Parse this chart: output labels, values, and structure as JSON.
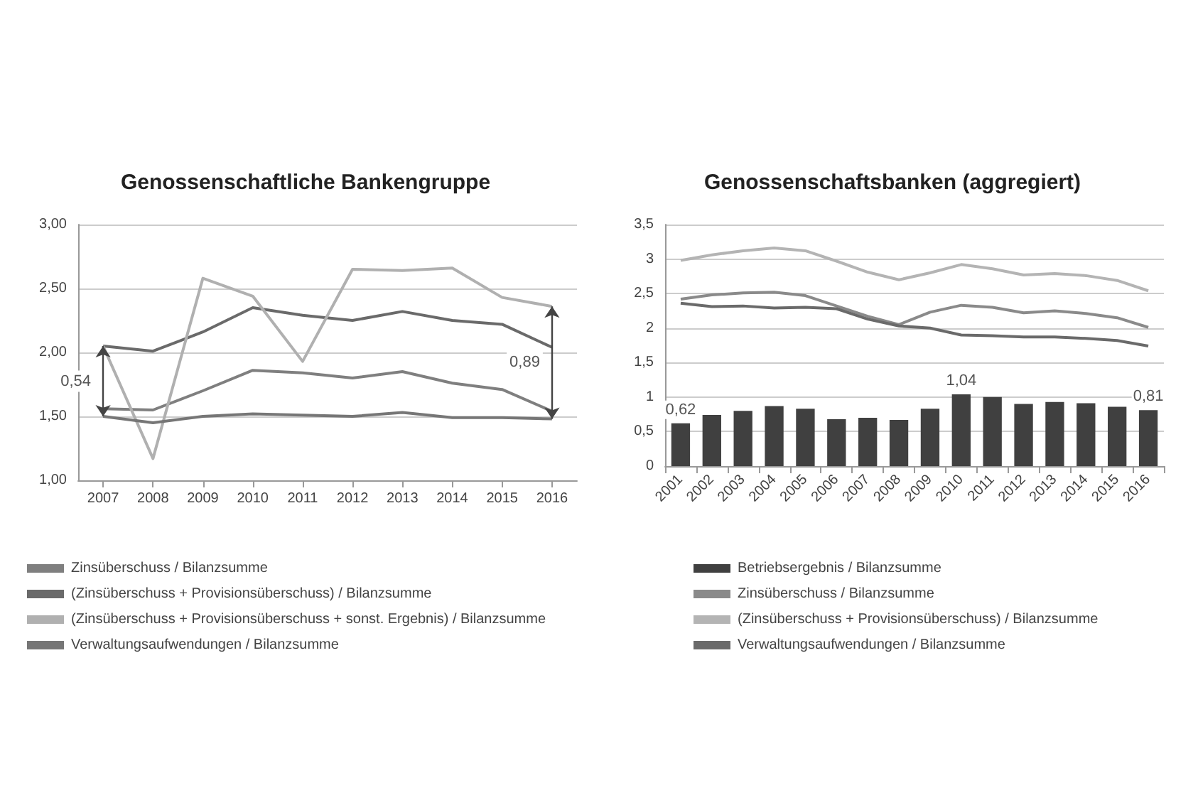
{
  "chart_data": [
    {
      "type": "line",
      "title": "Genossenschaftliche Bankengruppe",
      "categories": [
        "2007",
        "2008",
        "2009",
        "2010",
        "2011",
        "2012",
        "2013",
        "2014",
        "2015",
        "2016"
      ],
      "series": [
        {
          "name": "Zinsüberschuss / Bilanzsumme",
          "color": "#7f7f7f",
          "values": [
            1.56,
            1.55,
            1.7,
            1.86,
            1.84,
            1.8,
            1.85,
            1.76,
            1.71,
            1.54
          ]
        },
        {
          "name": "(Zinsüberschuss + Provisionsüberschuss) / Bilanzsumme",
          "color": "#6a6a6a",
          "values": [
            2.05,
            2.01,
            2.16,
            2.35,
            2.29,
            2.25,
            2.32,
            2.25,
            2.22,
            2.04
          ]
        },
        {
          "name": "(Zinsüberschuss + Provisionsüberschuss + sonst. Ergebnis) / Bilanzsumme",
          "color": "#b0b0b0",
          "values": [
            2.05,
            1.17,
            2.58,
            2.44,
            1.93,
            2.65,
            2.64,
            2.66,
            2.43,
            2.36
          ]
        },
        {
          "name": "Verwaltungsaufwendungen / Bilanzsumme",
          "color": "#767676",
          "values": [
            1.5,
            1.45,
            1.5,
            1.52,
            1.51,
            1.5,
            1.53,
            1.49,
            1.49,
            1.48
          ]
        }
      ],
      "ylim": [
        1,
        3
      ],
      "yticks": [
        {
          "value": 1,
          "label": "1,00"
        },
        {
          "value": 1.5,
          "label": "1,50"
        },
        {
          "value": 2,
          "label": "2,00"
        },
        {
          "value": 2.5,
          "label": "2,50"
        },
        {
          "value": 3,
          "label": "3,00"
        }
      ],
      "annotations": [
        "0,54",
        "0,89"
      ],
      "grid": "y",
      "legend": "bottom",
      "marker": "none"
    },
    {
      "type": "line",
      "title": "Genossenschaftsbanken (aggregiert)",
      "categories": [
        "2001",
        "2002",
        "2003",
        "2004",
        "2005",
        "2006",
        "2007",
        "2008",
        "2009",
        "2010",
        "2011",
        "2012",
        "2013",
        "2014",
        "2015",
        "2016"
      ],
      "series": [
        {
          "type": "bar",
          "name": "Betriebsergebnis / Bilanzsumme",
          "color": "#404040",
          "values": [
            0.62,
            0.74,
            0.8,
            0.87,
            0.83,
            0.68,
            0.7,
            0.67,
            0.83,
            1.04,
            1.0,
            0.9,
            0.93,
            0.91,
            0.86,
            0.81
          ],
          "value_labels": [
            "0,62",
            null,
            null,
            null,
            null,
            null,
            null,
            null,
            null,
            "1,04",
            null,
            null,
            null,
            null,
            null,
            "0,81"
          ]
        },
        {
          "name": "Zinsüberschuss / Bilanzsumme",
          "color": "#8a8a8a",
          "values": [
            2.42,
            2.48,
            2.51,
            2.52,
            2.47,
            2.32,
            2.17,
            2.05,
            2.23,
            2.33,
            2.3,
            2.22,
            2.25,
            2.21,
            2.15,
            2.01
          ]
        },
        {
          "name": "(Zinsüberschuss + Provisionsüberschuss) / Bilanzsumme",
          "color": "#b4b4b4",
          "values": [
            2.98,
            3.06,
            3.12,
            3.16,
            3.12,
            2.97,
            2.81,
            2.7,
            2.8,
            2.92,
            2.86,
            2.77,
            2.79,
            2.76,
            2.69,
            2.54
          ]
        },
        {
          "name": "Verwaltungsaufwendungen / Bilanzsumme",
          "color": "#6a6a6a",
          "values": [
            2.36,
            2.31,
            2.32,
            2.29,
            2.3,
            2.28,
            2.13,
            2.03,
            2.0,
            1.9,
            1.89,
            1.87,
            1.87,
            1.85,
            1.82,
            1.74
          ]
        }
      ],
      "ylim": [
        0,
        3.5
      ],
      "yticks": [
        0,
        {
          "value": 0.5,
          "label": "0,5"
        },
        1,
        {
          "value": 1.5,
          "label": "1,5"
        },
        2,
        {
          "value": 2.5,
          "label": "2,5"
        },
        3,
        {
          "value": 3.5,
          "label": "3,5"
        }
      ],
      "grid": "y",
      "legend": "bottom",
      "marker": "none"
    }
  ]
}
